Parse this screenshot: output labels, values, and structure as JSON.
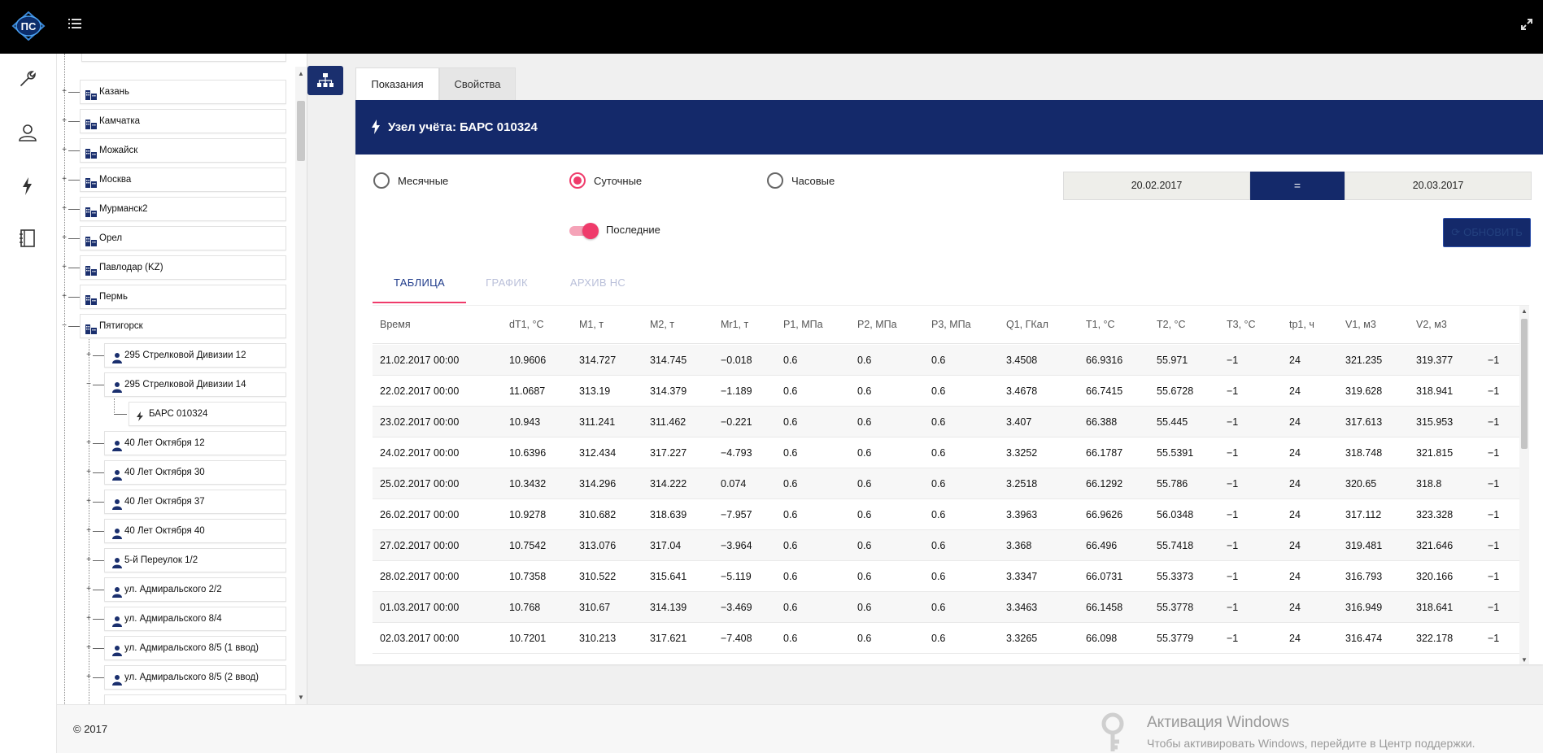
{
  "header": {
    "logo_text": "ПС",
    "menu_icon": "list-icon",
    "expand_icon": "expand-icon"
  },
  "iconbar": {
    "items": [
      "wrench-icon",
      "user-icon",
      "lightning-icon",
      "notebook-icon"
    ]
  },
  "tree": {
    "top_partial": "...",
    "cities": [
      "Казань",
      "Камчатка",
      "Можайск",
      "Москва",
      "Мурманск2",
      "Орел",
      "Павлодар (KZ)",
      "Пермь",
      "Пятигорск"
    ],
    "addresses": [
      "295 Стрелковой Дивизии 12",
      "295 Стрелковой Дивизии 14",
      "40 Лет Октября 12",
      "40 Лет Октября 30",
      "40 Лет Октября 37",
      "40 Лет Октября 40",
      "5-й Переулок 1/2",
      "ул. Адмиральского 2/2",
      "ул. Адмиральского 8/4",
      "ул. Адмиральского 8/5 (1 ввод)",
      "ул. Адмиральского 8/5 (2 ввод)"
    ],
    "meter": "БАРС 010324"
  },
  "tabs": {
    "readings": "Показания",
    "properties": "Свойства"
  },
  "card": {
    "title": "Узел учёта: БАРС 010324"
  },
  "filters": {
    "monthly": "Месячные",
    "daily": "Суточные",
    "hourly": "Часовые",
    "selected": "Суточные",
    "latest_label": "Последние",
    "latest_on": true,
    "date_from": "20.02.2017",
    "date_sep": "=",
    "date_to": "20.03.2017",
    "refresh": "ОБНОВИТЬ"
  },
  "subtabs": {
    "table": "ТАБЛИЦА",
    "chart": "ГРАФИК",
    "archive": "АРХИВ НС"
  },
  "table": {
    "columns": [
      "Время",
      "dT1, °C",
      "M1, т",
      "M2, т",
      "Mr1, т",
      "P1, МПа",
      "P2, МПа",
      "P3, МПа",
      "Q1, ГКал",
      "T1, °C",
      "T2, °C",
      "T3, °C",
      "tp1, ч",
      "V1, м3",
      "V2, м3",
      ""
    ],
    "rows": [
      [
        "21.02.2017 00:00",
        "10.9606",
        "314.727",
        "314.745",
        "−0.018",
        "0.6",
        "0.6",
        "0.6",
        "3.4508",
        "66.9316",
        "55.971",
        "−1",
        "24",
        "321.235",
        "319.377",
        "−1"
      ],
      [
        "22.02.2017 00:00",
        "11.0687",
        "313.19",
        "314.379",
        "−1.189",
        "0.6",
        "0.6",
        "0.6",
        "3.4678",
        "66.7415",
        "55.6728",
        "−1",
        "24",
        "319.628",
        "318.941",
        "−1"
      ],
      [
        "23.02.2017 00:00",
        "10.943",
        "311.241",
        "311.462",
        "−0.221",
        "0.6",
        "0.6",
        "0.6",
        "3.407",
        "66.388",
        "55.445",
        "−1",
        "24",
        "317.613",
        "315.953",
        "−1"
      ],
      [
        "24.02.2017 00:00",
        "10.6396",
        "312.434",
        "317.227",
        "−4.793",
        "0.6",
        "0.6",
        "0.6",
        "3.3252",
        "66.1787",
        "55.5391",
        "−1",
        "24",
        "318.748",
        "321.815",
        "−1"
      ],
      [
        "25.02.2017 00:00",
        "10.3432",
        "314.296",
        "314.222",
        "0.074",
        "0.6",
        "0.6",
        "0.6",
        "3.2518",
        "66.1292",
        "55.786",
        "−1",
        "24",
        "320.65",
        "318.8",
        "−1"
      ],
      [
        "26.02.2017 00:00",
        "10.9278",
        "310.682",
        "318.639",
        "−7.957",
        "0.6",
        "0.6",
        "0.6",
        "3.3963",
        "66.9626",
        "56.0348",
        "−1",
        "24",
        "317.112",
        "323.328",
        "−1"
      ],
      [
        "27.02.2017 00:00",
        "10.7542",
        "313.076",
        "317.04",
        "−3.964",
        "0.6",
        "0.6",
        "0.6",
        "3.368",
        "66.496",
        "55.7418",
        "−1",
        "24",
        "319.481",
        "321.646",
        "−1"
      ],
      [
        "28.02.2017 00:00",
        "10.7358",
        "310.522",
        "315.641",
        "−5.119",
        "0.6",
        "0.6",
        "0.6",
        "3.3347",
        "66.0731",
        "55.3373",
        "−1",
        "24",
        "316.793",
        "320.166",
        "−1"
      ],
      [
        "01.03.2017 00:00",
        "10.768",
        "310.67",
        "314.139",
        "−3.469",
        "0.6",
        "0.6",
        "0.6",
        "3.3463",
        "66.1458",
        "55.3778",
        "−1",
        "24",
        "316.949",
        "318.641",
        "−1"
      ],
      [
        "02.03.2017 00:00",
        "10.7201",
        "310.213",
        "317.621",
        "−7.408",
        "0.6",
        "0.6",
        "0.6",
        "3.3265",
        "66.098",
        "55.3779",
        "−1",
        "24",
        "316.474",
        "322.178",
        "−1"
      ]
    ]
  },
  "footer": {
    "copyright": "© 2017"
  },
  "watermark": {
    "title": "Активация Windows",
    "subtitle": "Чтобы активировать Windows, перейдите в Центр поддержки."
  },
  "colors": {
    "brand_navy": "#14296a",
    "accent_pink": "#ef3b6b"
  }
}
